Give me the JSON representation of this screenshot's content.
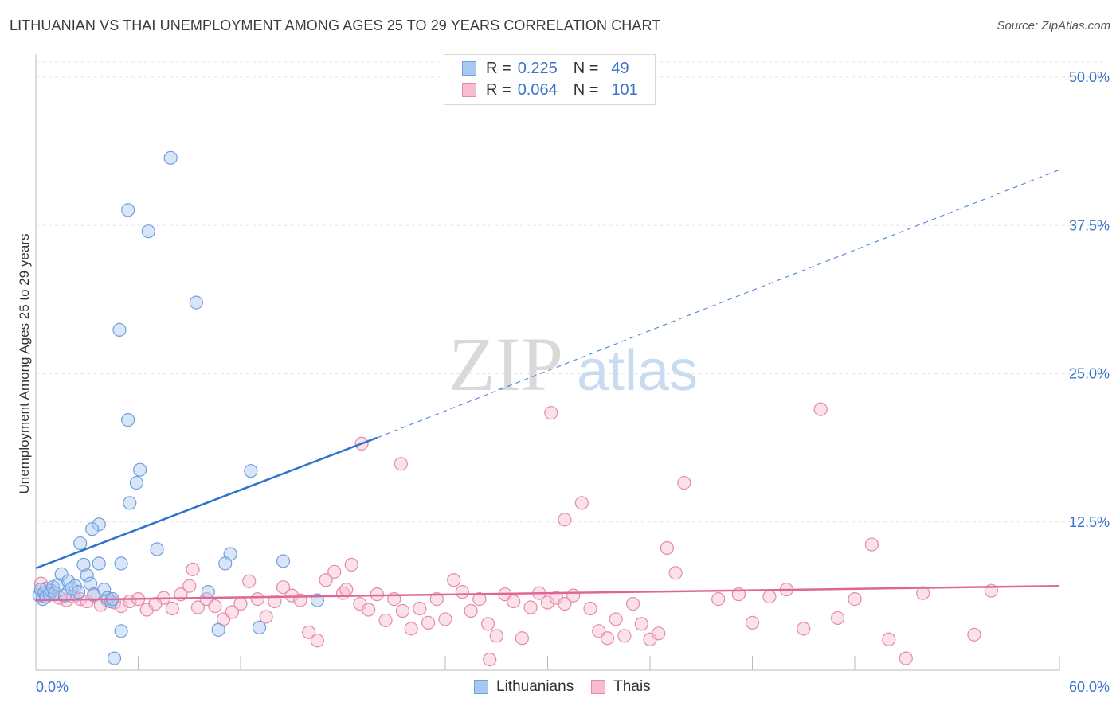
{
  "header": {
    "title": "LITHUANIAN VS THAI UNEMPLOYMENT AMONG AGES 25 TO 29 YEARS CORRELATION CHART",
    "source": "Source: ZipAtlas.com"
  },
  "watermark": {
    "zip": "ZIP",
    "atlas": "atlas"
  },
  "legend": {
    "r_label": "R =",
    "n_label": "N =",
    "rows": [
      {
        "r": "0.225",
        "n": "49",
        "color": "#a9c8f0",
        "border": "#6f9fe0"
      },
      {
        "r": "0.064",
        "n": "101",
        "color": "#f7bcd0",
        "border": "#e58aaa"
      }
    ]
  },
  "bottom_legend": {
    "items": [
      {
        "label": "Lithuanians",
        "color": "#a9c8f0",
        "border": "#6f9fe0"
      },
      {
        "label": "Thais",
        "color": "#f7bcd0",
        "border": "#e58aaa"
      }
    ]
  },
  "chart_data": {
    "type": "scatter",
    "ylabel": "Unemployment Among Ages 25 to 29 years",
    "xlabel": "",
    "xlim": [
      0,
      60
    ],
    "ylim": [
      0,
      50
    ],
    "x_tick_labels": [
      "0.0%",
      "60.0%"
    ],
    "y_ticks": [
      12.5,
      25.0,
      37.5,
      50.0
    ],
    "y_tick_labels": [
      "12.5%",
      "25.0%",
      "37.5%",
      "50.0%"
    ],
    "grid": true,
    "colors": {
      "lithuanians": "#2f72cc",
      "thais": "#e0669a",
      "axis_text": "#3a74c9"
    },
    "series": [
      {
        "name": "Lithuanians",
        "points": [
          [
            0.2,
            6.3
          ],
          [
            0.3,
            6.8
          ],
          [
            0.4,
            6.0
          ],
          [
            0.5,
            6.5
          ],
          [
            0.6,
            6.2
          ],
          [
            0.8,
            6.4
          ],
          [
            0.9,
            6.7
          ],
          [
            1.0,
            7.0
          ],
          [
            1.1,
            6.5
          ],
          [
            1.3,
            7.2
          ],
          [
            1.5,
            8.1
          ],
          [
            1.7,
            6.3
          ],
          [
            1.9,
            7.5
          ],
          [
            2.1,
            6.9
          ],
          [
            2.3,
            7.1
          ],
          [
            2.5,
            6.6
          ],
          [
            2.8,
            8.9
          ],
          [
            3.0,
            8.0
          ],
          [
            3.2,
            7.3
          ],
          [
            3.4,
            6.4
          ],
          [
            3.7,
            9.0
          ],
          [
            4.0,
            6.8
          ],
          [
            4.2,
            6.1
          ],
          [
            4.4,
            5.8
          ],
          [
            4.5,
            6.0
          ],
          [
            2.6,
            10.7
          ],
          [
            3.7,
            12.3
          ],
          [
            3.3,
            11.9
          ],
          [
            4.9,
            28.7
          ],
          [
            5.4,
            21.1
          ],
          [
            7.1,
            10.2
          ],
          [
            5.5,
            14.1
          ],
          [
            5.0,
            3.3
          ],
          [
            4.6,
            1.0
          ],
          [
            6.1,
            16.9
          ],
          [
            5.9,
            15.8
          ],
          [
            6.6,
            37.0
          ],
          [
            5.4,
            38.8
          ],
          [
            7.9,
            43.2
          ],
          [
            9.4,
            31.0
          ],
          [
            12.6,
            16.8
          ],
          [
            11.4,
            9.8
          ],
          [
            11.1,
            9.0
          ],
          [
            10.1,
            6.6
          ],
          [
            10.7,
            3.4
          ],
          [
            13.1,
            3.6
          ],
          [
            14.5,
            9.2
          ],
          [
            16.5,
            5.9
          ],
          [
            5.0,
            9.0
          ]
        ]
      },
      {
        "name": "Thais",
        "points": [
          [
            0.3,
            7.3
          ],
          [
            0.6,
            6.9
          ],
          [
            1.0,
            6.4
          ],
          [
            1.4,
            6.1
          ],
          [
            1.8,
            5.9
          ],
          [
            2.2,
            6.2
          ],
          [
            2.6,
            6.0
          ],
          [
            3.0,
            5.8
          ],
          [
            3.4,
            6.3
          ],
          [
            3.8,
            5.5
          ],
          [
            4.2,
            5.9
          ],
          [
            4.6,
            5.7
          ],
          [
            5.0,
            5.4
          ],
          [
            5.5,
            5.8
          ],
          [
            6.0,
            6.0
          ],
          [
            6.5,
            5.1
          ],
          [
            7.0,
            5.6
          ],
          [
            7.5,
            6.1
          ],
          [
            8.0,
            5.2
          ],
          [
            8.5,
            6.4
          ],
          [
            9.0,
            7.1
          ],
          [
            9.5,
            5.3
          ],
          [
            10.0,
            6.0
          ],
          [
            10.5,
            5.4
          ],
          [
            11.0,
            4.3
          ],
          [
            11.5,
            4.9
          ],
          [
            12.0,
            5.6
          ],
          [
            12.5,
            7.5
          ],
          [
            13.0,
            6.0
          ],
          [
            13.5,
            4.5
          ],
          [
            14.0,
            5.8
          ],
          [
            14.5,
            7.0
          ],
          [
            15.0,
            6.3
          ],
          [
            15.5,
            5.9
          ],
          [
            16.0,
            3.2
          ],
          [
            16.5,
            2.5
          ],
          [
            17.0,
            7.6
          ],
          [
            17.5,
            8.3
          ],
          [
            18.0,
            6.5
          ],
          [
            18.5,
            8.9
          ],
          [
            19.0,
            5.6
          ],
          [
            19.5,
            5.1
          ],
          [
            20.0,
            6.4
          ],
          [
            20.5,
            4.2
          ],
          [
            21.0,
            6.0
          ],
          [
            21.5,
            5.0
          ],
          [
            22.0,
            3.5
          ],
          [
            22.5,
            5.2
          ],
          [
            23.0,
            4.0
          ],
          [
            23.5,
            6.0
          ],
          [
            24.0,
            4.3
          ],
          [
            24.5,
            7.6
          ],
          [
            25.0,
            6.6
          ],
          [
            25.5,
            5.0
          ],
          [
            26.0,
            6.0
          ],
          [
            26.5,
            3.9
          ],
          [
            27.0,
            2.9
          ],
          [
            27.5,
            6.4
          ],
          [
            28.0,
            5.8
          ],
          [
            28.5,
            2.7
          ],
          [
            29.0,
            5.3
          ],
          [
            29.5,
            6.5
          ],
          [
            30.0,
            5.7
          ],
          [
            30.5,
            6.1
          ],
          [
            31.0,
            5.6
          ],
          [
            31.5,
            6.3
          ],
          [
            32.0,
            14.1
          ],
          [
            32.5,
            5.2
          ],
          [
            33.0,
            3.3
          ],
          [
            33.5,
            2.7
          ],
          [
            34.0,
            4.3
          ],
          [
            34.5,
            2.9
          ],
          [
            35.0,
            5.6
          ],
          [
            35.5,
            3.9
          ],
          [
            36.0,
            2.6
          ],
          [
            36.5,
            3.1
          ],
          [
            37.0,
            10.3
          ],
          [
            37.5,
            8.2
          ],
          [
            38.0,
            15.8
          ],
          [
            40.0,
            6.0
          ],
          [
            42.0,
            4.0
          ],
          [
            43.0,
            6.2
          ],
          [
            45.0,
            3.5
          ],
          [
            46.0,
            22.0
          ],
          [
            47.0,
            4.4
          ],
          [
            48.0,
            6.0
          ],
          [
            49.0,
            10.6
          ],
          [
            50.0,
            2.6
          ],
          [
            51.0,
            1.0
          ],
          [
            55.0,
            3.0
          ],
          [
            19.1,
            19.1
          ],
          [
            21.4,
            17.4
          ],
          [
            30.2,
            21.7
          ],
          [
            31.0,
            12.7
          ],
          [
            26.6,
            0.9
          ],
          [
            41.2,
            6.4
          ],
          [
            44.0,
            6.8
          ],
          [
            52.0,
            6.5
          ],
          [
            56.0,
            6.7
          ],
          [
            18.2,
            6.8
          ],
          [
            9.2,
            8.5
          ]
        ]
      }
    ],
    "trend_lines": [
      {
        "series": "Lithuanians",
        "x_start": 0,
        "y_start": 8.6,
        "x_solid_end": 20,
        "y_solid_end": 19.6,
        "x_end": 60,
        "y_end": 42.2,
        "style": "solid then dashed"
      },
      {
        "series": "Thais",
        "x_start": 0,
        "y_start": 5.9,
        "x_end": 60,
        "y_end": 7.1,
        "style": "solid"
      }
    ]
  }
}
